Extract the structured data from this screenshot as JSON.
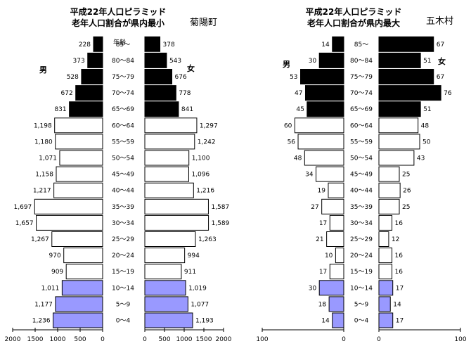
{
  "age_header": "年齢",
  "chart_data": [
    {
      "type": "bar",
      "title": "平成22年人口ピラミッド",
      "subtitle": "老年人口割合が県内最小",
      "place": "菊陽町",
      "male_label": "男",
      "female_label": "女",
      "categories": [
        "0～4",
        "5～9",
        "10～14",
        "15～19",
        "20～24",
        "25～29",
        "30～34",
        "35～39",
        "40～44",
        "45～49",
        "50～54",
        "55～59",
        "60～64",
        "65～69",
        "70～74",
        "75～79",
        "80～84",
        "85～"
      ],
      "series": [
        {
          "name": "男",
          "values": [
            1236,
            1177,
            1011,
            909,
            970,
            1267,
            1657,
            1697,
            1217,
            1158,
            1071,
            1180,
            1198,
            831,
            672,
            528,
            373,
            228
          ]
        },
        {
          "name": "女",
          "values": [
            1193,
            1077,
            1019,
            911,
            994,
            1263,
            1589,
            1587,
            1216,
            1096,
            1100,
            1242,
            1297,
            841,
            778,
            676,
            543,
            378
          ]
        }
      ],
      "male_labels": [
        "1,236",
        "1,177",
        "1,011",
        "909",
        "970",
        "1,267",
        "1,657",
        "1,697",
        "1,217",
        "1,158",
        "1,071",
        "1,180",
        "1,198",
        "831",
        "672",
        "528",
        "373",
        "228"
      ],
      "female_labels": [
        "1,193",
        "1,077",
        "1,019",
        "911",
        "994",
        "1,263",
        "1,589",
        "1,587",
        "1,216",
        "1,096",
        "1,100",
        "1,242",
        "1,297",
        "841",
        "778",
        "676",
        "543",
        "378"
      ],
      "xlim": [
        0,
        2000
      ],
      "male_ticks": [
        "2000",
        "1500",
        "1000",
        "500",
        "0"
      ],
      "female_ticks": [
        "0",
        "500",
        "1000",
        "1500",
        "2000"
      ]
    },
    {
      "type": "bar",
      "title": "平成22年人口ピラミッド",
      "subtitle": "老年人口割合が県内最大",
      "place": "五木村",
      "male_label": "男",
      "female_label": "女",
      "categories": [
        "0～4",
        "5～9",
        "10～14",
        "15～19",
        "20～24",
        "25～29",
        "30～34",
        "35～39",
        "40～44",
        "45～49",
        "50～54",
        "55～59",
        "60～64",
        "65～69",
        "70～74",
        "75～79",
        "80～84",
        "85～"
      ],
      "series": [
        {
          "name": "男",
          "values": [
            14,
            18,
            30,
            17,
            10,
            21,
            17,
            27,
            19,
            34,
            48,
            56,
            60,
            45,
            47,
            53,
            30,
            14
          ]
        },
        {
          "name": "女",
          "values": [
            17,
            14,
            17,
            16,
            16,
            12,
            16,
            25,
            26,
            25,
            43,
            50,
            48,
            51,
            76,
            67,
            51,
            67
          ]
        }
      ],
      "male_labels": [
        "14",
        "18",
        "30",
        "17",
        "10",
        "21",
        "17",
        "27",
        "19",
        "34",
        "48",
        "56",
        "60",
        "45",
        "47",
        "53",
        "30",
        "14"
      ],
      "female_labels": [
        "17",
        "14",
        "17",
        "16",
        "16",
        "12",
        "16",
        "25",
        "26",
        "25",
        "43",
        "50",
        "48",
        "51",
        "76",
        "67",
        "51",
        "67"
      ],
      "xlim": [
        0,
        100
      ],
      "male_ticks": [
        "100",
        "0"
      ],
      "female_ticks": [
        "0",
        "100"
      ]
    }
  ]
}
